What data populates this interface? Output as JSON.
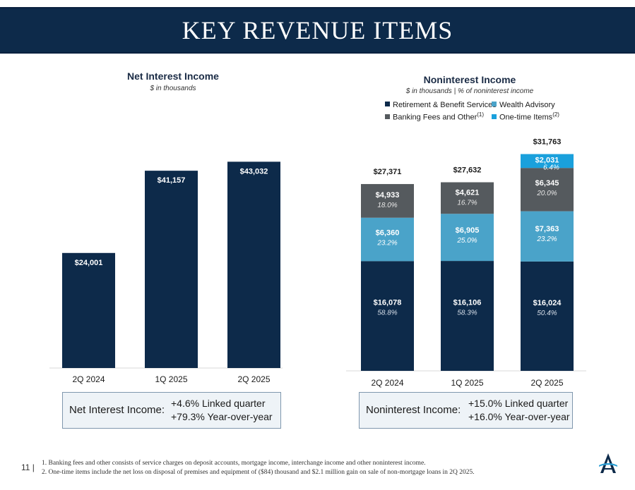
{
  "page": {
    "title": "KEY REVENUE ITEMS",
    "page_number": "11 |"
  },
  "nii": {
    "title": "Net Interest Income",
    "subtitle": "$ in thousands",
    "summary_label": "Net Interest Income:",
    "summary_line1": "+4.6% Linked quarter",
    "summary_line2": "+79.3% Year-over-year"
  },
  "nonii": {
    "title": "Noninterest Income",
    "subtitle": "$ in thousands | % of noninterest income",
    "legend": [
      {
        "label": "Retirement & Benefit Services",
        "sup": ""
      },
      {
        "label": "Wealth Advisory",
        "sup": ""
      },
      {
        "label": "Banking Fees and Other",
        "sup": "(1)"
      },
      {
        "label": "One-time Items",
        "sup": "(2)"
      }
    ],
    "summary_label": "Noninterest Income:",
    "summary_line1": "+15.0% Linked quarter",
    "summary_line2": "+16.0% Year-over-year"
  },
  "footnotes": [
    "1. Banking fees and other consists of service charges on deposit accounts, mortgage income, interchange income and other noninterest income.",
    "2. One-time items include the net loss on disposal of premises and equipment of ($84) thousand and $2.1 million gain on sale of non-mortgage loans in 2Q 2025."
  ],
  "colors": {
    "navy": "#0d2a4a",
    "retirement": "#0d2a4a",
    "wealth": "#4aa3c9",
    "banking": "#555a5e",
    "onetime": "#1aa0dc"
  },
  "chart_data": [
    {
      "type": "bar",
      "title": "Net Interest Income",
      "subtitle": "$ in thousands",
      "categories": [
        "2Q 2024",
        "1Q 2025",
        "2Q 2025"
      ],
      "values": [
        24001,
        41157,
        43032
      ],
      "value_labels": [
        "$24,001",
        "$41,157",
        "$43,032"
      ],
      "ylim": [
        0,
        45000
      ]
    },
    {
      "type": "stacked-bar",
      "title": "Noninterest Income",
      "subtitle": "$ in thousands | % of noninterest income",
      "categories": [
        "2Q 2024",
        "1Q 2025",
        "2Q 2025"
      ],
      "series": [
        {
          "name": "Retirement & Benefit Services",
          "values": [
            16078,
            16106,
            16024
          ],
          "labels": [
            "$16,078",
            "$16,106",
            "$16,024"
          ],
          "pct": [
            "58.8%",
            "58.3%",
            "50.4%"
          ]
        },
        {
          "name": "Wealth Advisory",
          "values": [
            6360,
            6905,
            7363
          ],
          "labels": [
            "$6,360",
            "$6,905",
            "$7,363"
          ],
          "pct": [
            "23.2%",
            "25.0%",
            "23.2%"
          ]
        },
        {
          "name": "Banking Fees and Other",
          "values": [
            4933,
            4621,
            6345
          ],
          "labels": [
            "$4,933",
            "$4,621",
            "$6,345"
          ],
          "pct": [
            "18.0%",
            "16.7%",
            "20.0%"
          ]
        },
        {
          "name": "One-time Items",
          "values": [
            0,
            0,
            2031
          ],
          "labels": [
            "",
            "",
            "$2,031"
          ],
          "pct": [
            "",
            "",
            "6.4%"
          ]
        }
      ],
      "totals": [
        27371,
        27632,
        31763
      ],
      "total_labels": [
        "$27,371",
        "$27,632",
        "$31,763"
      ],
      "ylim": [
        0,
        32000
      ]
    }
  ]
}
